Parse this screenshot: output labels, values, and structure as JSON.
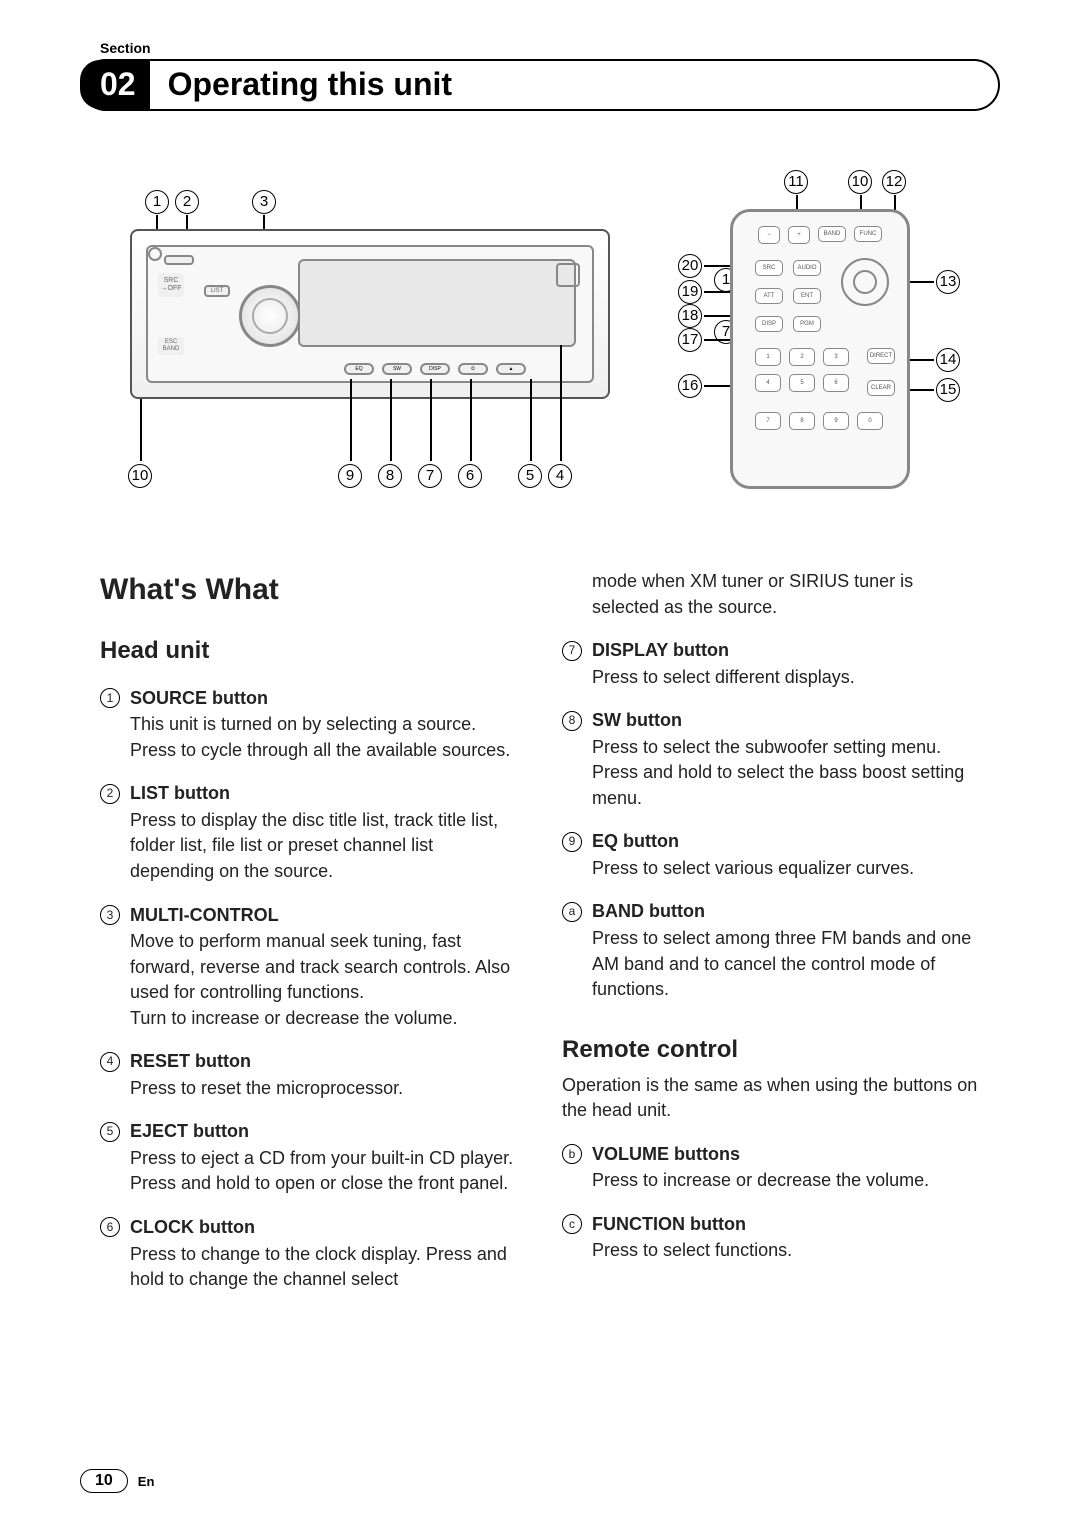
{
  "section_label": "Section",
  "chapter_number": "02",
  "chapter_title": "Operating this unit",
  "whats_what": "What's What",
  "head_unit_title": "Head unit",
  "remote_title": "Remote control",
  "remote_intro": "Operation is the same as when using the buttons on the head unit.",
  "col2_lead": "mode when XM tuner or SIRIUS tuner is selected as the source.",
  "head_items": [
    {
      "n": "1",
      "title": "SOURCE button",
      "desc": "This unit is turned on by selecting a source. Press to cycle through all the available sources."
    },
    {
      "n": "2",
      "title": "LIST button",
      "desc": "Press to display the disc title list, track title list, folder list, file list or preset channel list depending on the source."
    },
    {
      "n": "3",
      "title": "MULTI-CONTROL",
      "desc": "Move to perform manual seek tuning, fast forward, reverse and track search controls. Also used for controlling functions.\nTurn to increase or decrease the volume."
    },
    {
      "n": "4",
      "title": "RESET button",
      "desc": "Press to reset the microprocessor."
    },
    {
      "n": "5",
      "title": "EJECT button",
      "desc": "Press to eject a CD from your built-in CD player.\nPress and hold to open or close the front panel."
    },
    {
      "n": "6",
      "title": "CLOCK button",
      "desc": "Press to change to the clock display. Press and hold to change the channel select"
    }
  ],
  "head_items2": [
    {
      "n": "7",
      "title": "DISPLAY button",
      "desc": "Press to select different displays."
    },
    {
      "n": "8",
      "title": "SW button",
      "desc": "Press to select the subwoofer setting menu. Press and hold to select the bass boost setting menu."
    },
    {
      "n": "9",
      "title": "EQ button",
      "desc": "Press to select various equalizer curves."
    },
    {
      "n": "10",
      "title": "BAND button",
      "desc": "Press to select among three FM bands and one AM band and to cancel the control mode of functions."
    }
  ],
  "remote_items": [
    {
      "n": "11",
      "title": "VOLUME buttons",
      "desc": "Press to increase or decrease the volume."
    },
    {
      "n": "12",
      "title": "FUNCTION button",
      "desc": "Press to select functions."
    }
  ],
  "hu_labels": {
    "src": "SRC",
    "off": "→OFF",
    "list": "LIST",
    "esc": "ESC",
    "band": "BAND",
    "eq": "EQ",
    "sw": "SW",
    "disp": "DISP"
  },
  "remote_labels": {
    "band": "BAND",
    "func": "FUNC",
    "src": "SRC",
    "audio": "AUDIO",
    "att": "ATT",
    "ent": "ENT",
    "disp": "DISP",
    "pgm": "PGM",
    "direct": "DIRECT",
    "clear": "CLEAR"
  },
  "callouts_head_top": [
    "1",
    "2",
    "3"
  ],
  "callouts_head_bottom": [
    "10",
    "9",
    "8",
    "7",
    "6",
    "5",
    "4"
  ],
  "callouts_remote_top": [
    "11",
    "10",
    "12"
  ],
  "callouts_remote_left": [
    {
      "n": "20"
    },
    {
      "n": "19"
    },
    {
      "n": "1"
    },
    {
      "n": "18"
    },
    {
      "n": "17"
    },
    {
      "n": "7"
    },
    {
      "n": "16"
    }
  ],
  "callouts_remote_right": [
    {
      "n": "13"
    },
    {
      "n": "14"
    },
    {
      "n": "15"
    }
  ],
  "page_number": "10",
  "lang": "En"
}
